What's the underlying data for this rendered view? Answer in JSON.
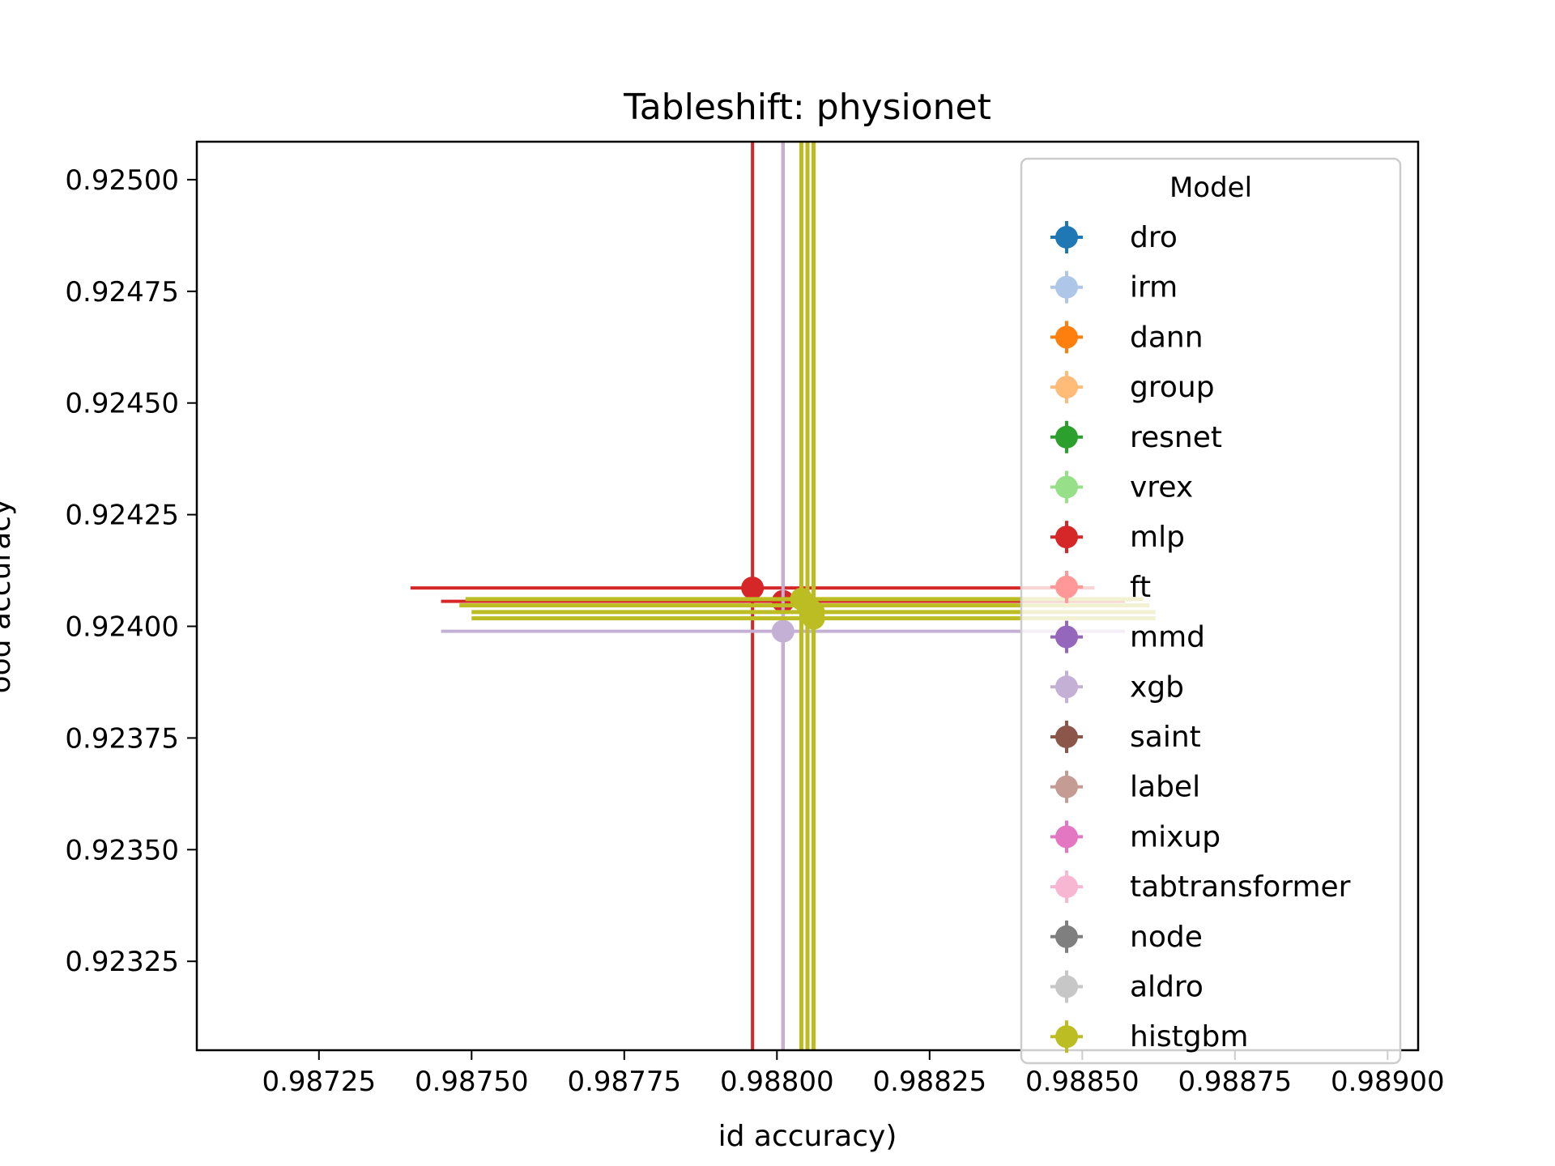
{
  "chart_data": {
    "type": "scatter",
    "title": "Tableshift: physionet",
    "xlabel": "id accuracy)",
    "ylabel": "ood accuracy",
    "xlim": [
      0.98705,
      0.98905
    ],
    "ylim": [
      0.923051,
      0.925085
    ],
    "xticks": [
      0.98725,
      0.9875,
      0.98775,
      0.988,
      0.98825,
      0.9885,
      0.98875,
      0.989
    ],
    "xtick_labels": [
      "0.98725",
      "0.98750",
      "0.98775",
      "0.98800",
      "0.98825",
      "0.98850",
      "0.98875",
      "0.98900"
    ],
    "yticks": [
      0.92325,
      0.9235,
      0.92375,
      0.924,
      0.92425,
      0.9245,
      0.92475,
      0.925
    ],
    "ytick_labels": [
      "0.92325",
      "0.92350",
      "0.92375",
      "0.92400",
      "0.92425",
      "0.92450",
      "0.92475",
      "0.92500"
    ],
    "grid": false,
    "legend": {
      "title": "Model",
      "placement": "right",
      "entries": [
        {
          "name": "dro",
          "color": "#1f77b4"
        },
        {
          "name": "irm",
          "color": "#aec7e8"
        },
        {
          "name": "dann",
          "color": "#ff7f0e"
        },
        {
          "name": "group",
          "color": "#ffbb78"
        },
        {
          "name": "resnet",
          "color": "#2ca02c"
        },
        {
          "name": "vrex",
          "color": "#98df8a"
        },
        {
          "name": "mlp",
          "color": "#d62728"
        },
        {
          "name": "ft",
          "color": "#ff9896"
        },
        {
          "name": "mmd",
          "color": "#9467bd"
        },
        {
          "name": "xgb",
          "color": "#c5b0d5"
        },
        {
          "name": "saint",
          "color": "#8c564b"
        },
        {
          "name": "label",
          "color": "#c49c94"
        },
        {
          "name": "mixup",
          "color": "#e377c2"
        },
        {
          "name": "tabtransformer",
          "color": "#f7b6d2"
        },
        {
          "name": "node",
          "color": "#7f7f7f"
        },
        {
          "name": "aldro",
          "color": "#c7c7c7"
        },
        {
          "name": "histgbm",
          "color": "#bcbd22"
        }
      ]
    },
    "points": [
      {
        "model": "mlp",
        "color": "#d62728",
        "x": 0.98796,
        "y": 0.924086,
        "xerr_low": 0.9874,
        "xerr_high": 0.98852,
        "yerr_low": 0.9229,
        "yerr_high": 0.9253
      },
      {
        "model": "mlp",
        "color": "#d62728",
        "x": 0.98801,
        "y": 0.924056,
        "xerr_low": 0.98745,
        "xerr_high": 0.98857,
        "yerr_low": 0.9229,
        "yerr_high": 0.9253
      },
      {
        "model": "xgb",
        "color": "#c5b0d5",
        "x": 0.98801,
        "y": 0.923989,
        "xerr_low": 0.98745,
        "xerr_high": 0.98857,
        "yerr_low": 0.9229,
        "yerr_high": 0.9253
      },
      {
        "model": "histgbm",
        "color": "#bcbd22",
        "x": 0.98804,
        "y": 0.924061,
        "xerr_low": 0.98749,
        "xerr_high": 0.9886,
        "yerr_low": 0.9229,
        "yerr_high": 0.9253
      },
      {
        "model": "histgbm",
        "color": "#bcbd22",
        "x": 0.98805,
        "y": 0.924047,
        "xerr_low": 0.98748,
        "xerr_high": 0.98861,
        "yerr_low": 0.9229,
        "yerr_high": 0.9253
      },
      {
        "model": "histgbm",
        "color": "#bcbd22",
        "x": 0.98806,
        "y": 0.924032,
        "xerr_low": 0.9875,
        "xerr_high": 0.98862,
        "yerr_low": 0.9229,
        "yerr_high": 0.9253
      },
      {
        "model": "histgbm",
        "color": "#bcbd22",
        "x": 0.98806,
        "y": 0.924018,
        "xerr_low": 0.9875,
        "xerr_high": 0.98862,
        "yerr_low": 0.9229,
        "yerr_high": 0.9253
      }
    ]
  }
}
